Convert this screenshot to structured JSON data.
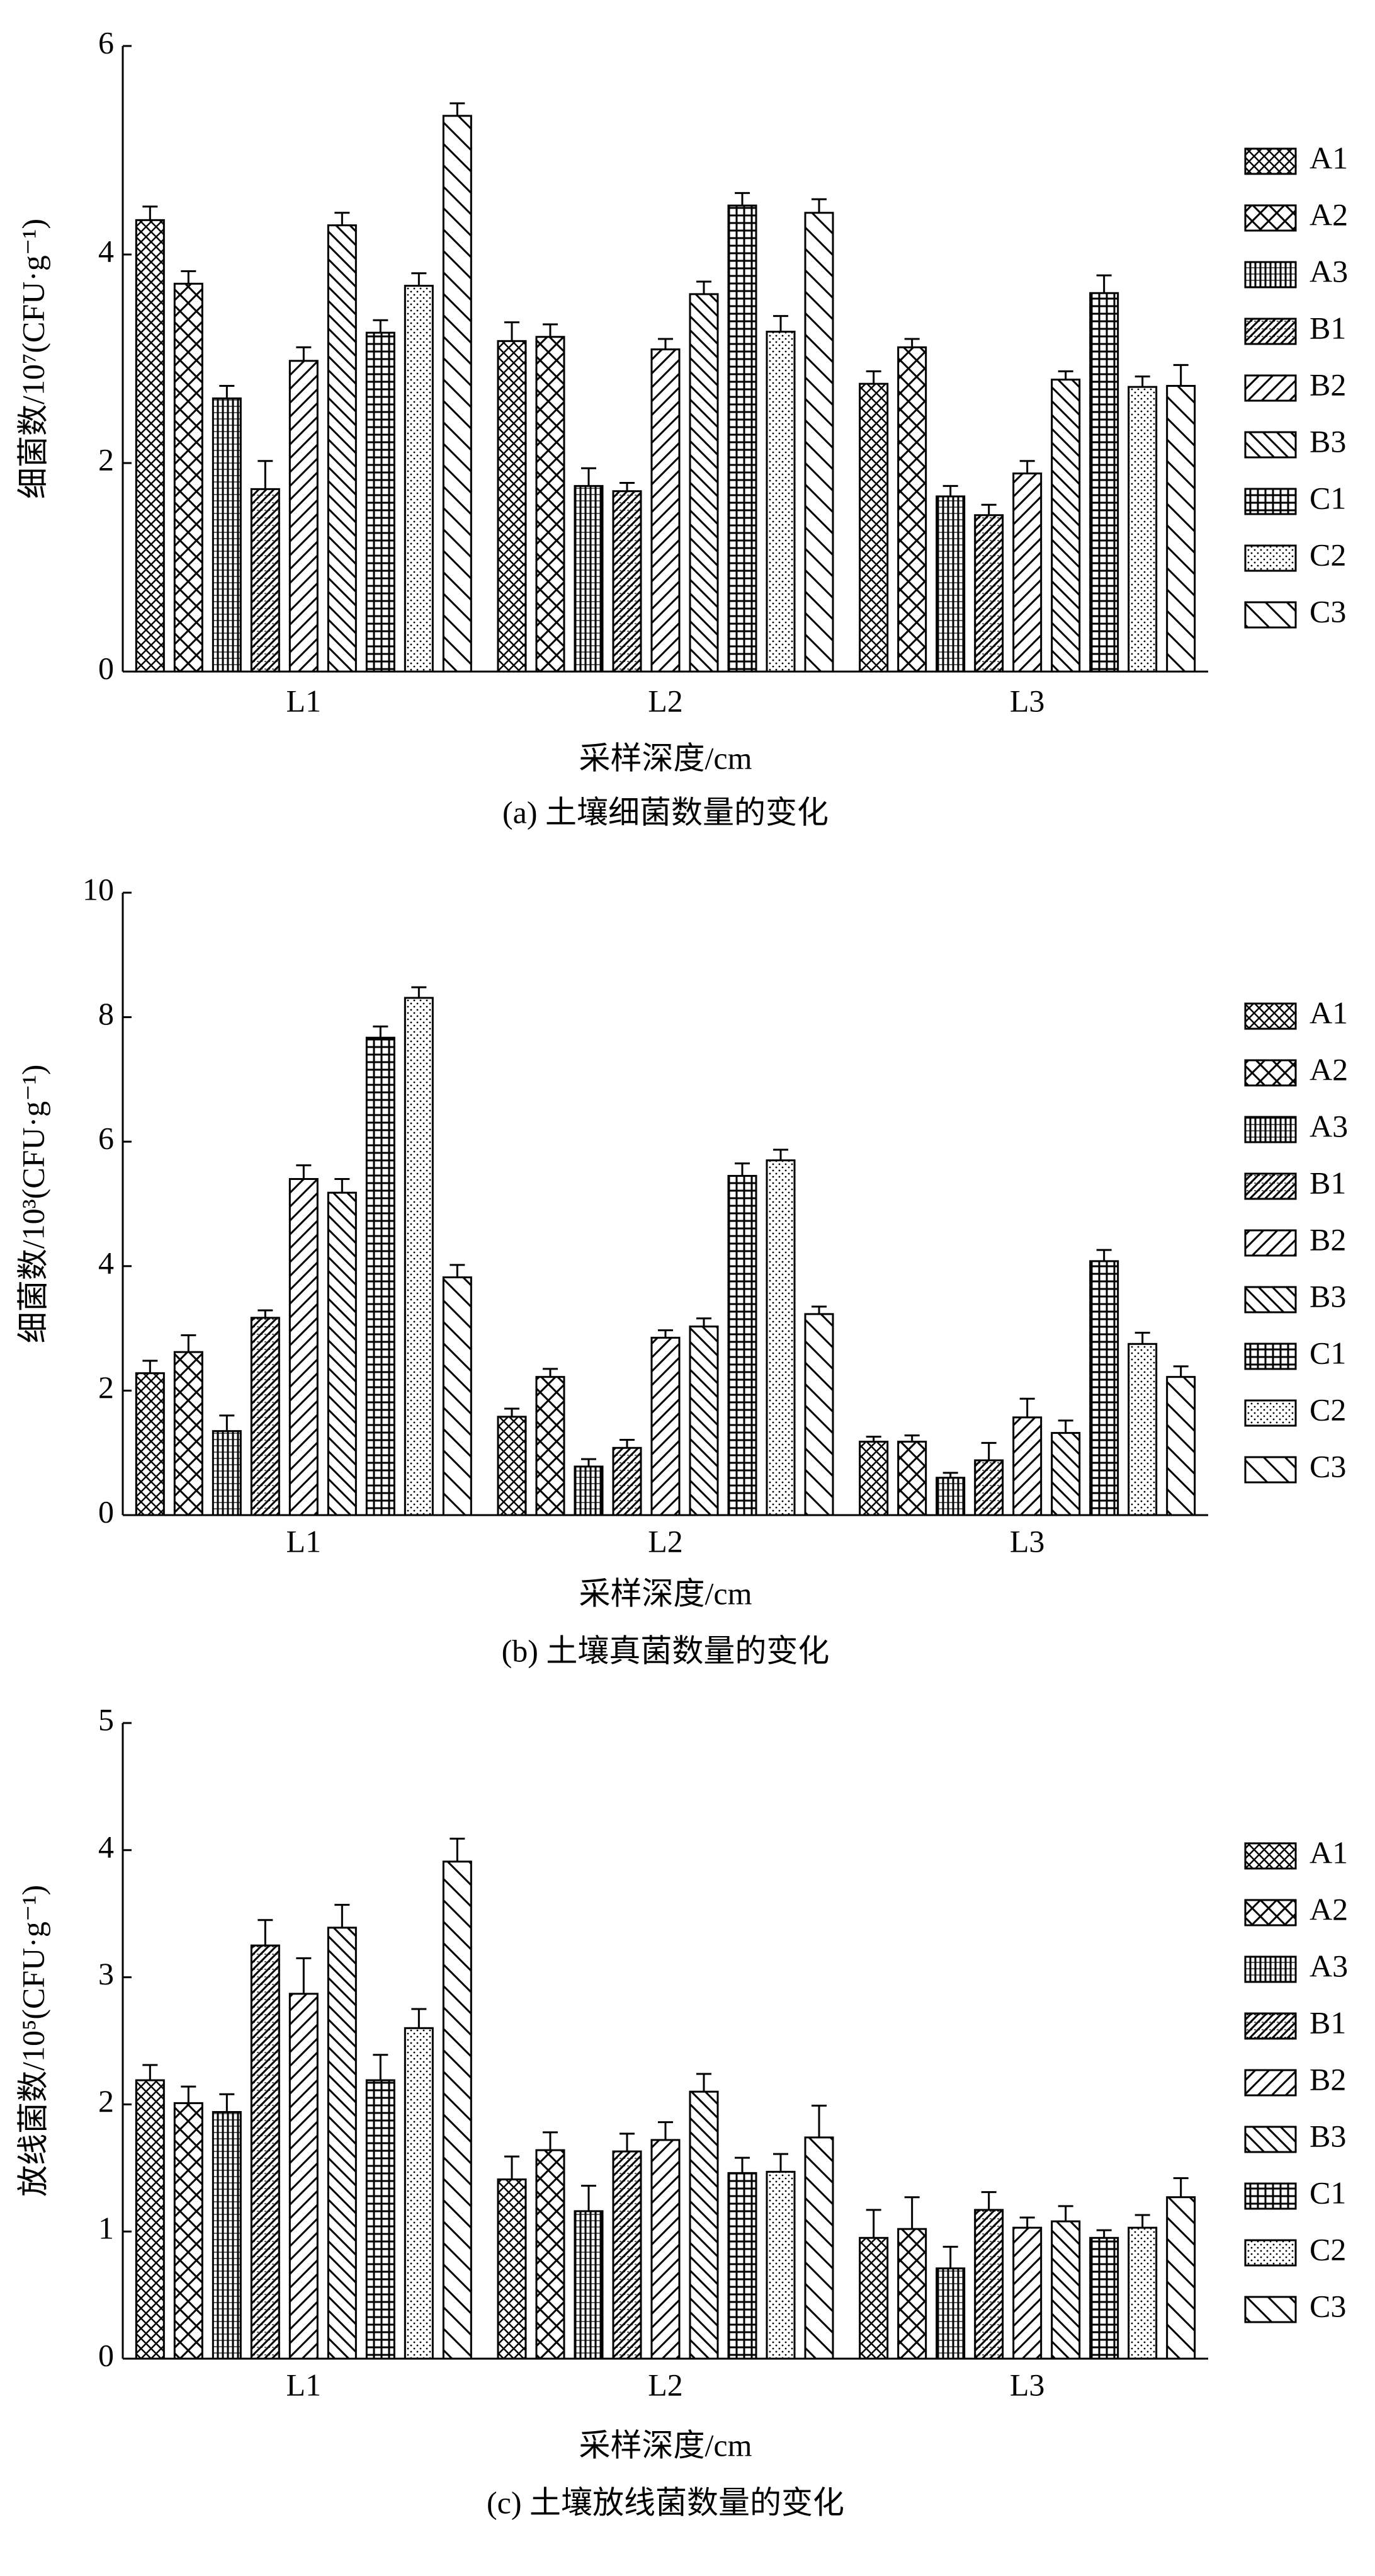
{
  "chart_data": [
    {
      "type": "bar",
      "caption": "(a) 土壤细菌数量的变化",
      "xlabel": "采样深度/cm",
      "ylabel": "细菌数/10⁷(CFU·g⁻¹)",
      "categories": [
        "L1",
        "L2",
        "L3"
      ],
      "ylim": [
        0,
        6
      ],
      "yticks": [
        0,
        2,
        4,
        6
      ],
      "series": [
        {
          "name": "A1",
          "color": "#000000",
          "values": [
            4.33,
            3.17,
            2.76
          ],
          "errors": [
            0.13,
            0.18,
            0.12
          ]
        },
        {
          "name": "A2",
          "color": "#000000",
          "values": [
            3.72,
            3.21,
            3.11
          ],
          "errors": [
            0.12,
            0.12,
            0.08
          ]
        },
        {
          "name": "A3",
          "color": "#000000",
          "values": [
            2.62,
            1.78,
            1.68
          ],
          "errors": [
            0.12,
            0.17,
            0.1
          ]
        },
        {
          "name": "B1",
          "color": "#000000",
          "values": [
            1.75,
            1.73,
            1.5
          ],
          "errors": [
            0.27,
            0.08,
            0.1
          ]
        },
        {
          "name": "B2",
          "color": "#000000",
          "values": [
            2.98,
            3.09,
            1.9
          ],
          "errors": [
            0.13,
            0.1,
            0.12
          ]
        },
        {
          "name": "B3",
          "color": "#000000",
          "values": [
            4.28,
            3.62,
            2.8
          ],
          "errors": [
            0.12,
            0.12,
            0.08
          ]
        },
        {
          "name": "C1",
          "color": "#000000",
          "values": [
            3.25,
            4.47,
            3.63
          ],
          "errors": [
            0.12,
            0.12,
            0.17
          ]
        },
        {
          "name": "C2",
          "color": "#000000",
          "values": [
            3.7,
            3.26,
            2.73
          ],
          "errors": [
            0.12,
            0.15,
            0.1
          ]
        },
        {
          "name": "C3",
          "color": "#000000",
          "values": [
            5.33,
            4.4,
            2.74
          ],
          "errors": [
            0.12,
            0.13,
            0.2
          ]
        }
      ]
    },
    {
      "type": "bar",
      "caption": "(b) 土壤真菌数量的变化",
      "xlabel": "采样深度/cm",
      "ylabel": "细菌数/10³(CFU·g⁻¹)",
      "categories": [
        "L1",
        "L2",
        "L3"
      ],
      "ylim": [
        0,
        10
      ],
      "yticks": [
        0,
        2,
        4,
        6,
        8,
        10
      ],
      "series": [
        {
          "name": "A1",
          "color": "#000000",
          "values": [
            2.28,
            1.58,
            1.18
          ],
          "errors": [
            0.2,
            0.13,
            0.08
          ]
        },
        {
          "name": "A2",
          "color": "#000000",
          "values": [
            2.62,
            2.22,
            1.18
          ],
          "errors": [
            0.27,
            0.13,
            0.1
          ]
        },
        {
          "name": "A3",
          "color": "#000000",
          "values": [
            1.35,
            0.78,
            0.6
          ],
          "errors": [
            0.25,
            0.12,
            0.08
          ]
        },
        {
          "name": "B1",
          "color": "#000000",
          "values": [
            3.17,
            1.08,
            0.88
          ],
          "errors": [
            0.12,
            0.13,
            0.28
          ]
        },
        {
          "name": "B2",
          "color": "#000000",
          "values": [
            5.4,
            2.85,
            1.57
          ],
          "errors": [
            0.22,
            0.12,
            0.3
          ]
        },
        {
          "name": "B3",
          "color": "#000000",
          "values": [
            5.18,
            3.03,
            1.32
          ],
          "errors": [
            0.22,
            0.13,
            0.2
          ]
        },
        {
          "name": "C1",
          "color": "#000000",
          "values": [
            7.67,
            5.45,
            4.08
          ],
          "errors": [
            0.18,
            0.2,
            0.18
          ]
        },
        {
          "name": "C2",
          "color": "#000000",
          "values": [
            8.31,
            5.7,
            2.75
          ],
          "errors": [
            0.17,
            0.17,
            0.18
          ]
        },
        {
          "name": "C3",
          "color": "#000000",
          "values": [
            3.82,
            3.23,
            2.22
          ],
          "errors": [
            0.2,
            0.12,
            0.17
          ]
        }
      ]
    },
    {
      "type": "bar",
      "caption": "(c) 土壤放线菌数量的变化",
      "xlabel": "采样深度/cm",
      "ylabel": "放线菌数/10⁵(CFU·g⁻¹)",
      "categories": [
        "L1",
        "L2",
        "L3"
      ],
      "ylim": [
        0,
        5
      ],
      "yticks": [
        0,
        1,
        2,
        3,
        4,
        5
      ],
      "series": [
        {
          "name": "A1",
          "color": "#000000",
          "values": [
            2.19,
            1.41,
            0.95
          ],
          "errors": [
            0.12,
            0.18,
            0.22
          ]
        },
        {
          "name": "A2",
          "color": "#000000",
          "values": [
            2.01,
            1.64,
            1.02
          ],
          "errors": [
            0.13,
            0.14,
            0.25
          ]
        },
        {
          "name": "A3",
          "color": "#000000",
          "values": [
            1.94,
            1.16,
            0.71
          ],
          "errors": [
            0.14,
            0.2,
            0.17
          ]
        },
        {
          "name": "B1",
          "color": "#000000",
          "values": [
            3.25,
            1.63,
            1.17
          ],
          "errors": [
            0.2,
            0.14,
            0.14
          ]
        },
        {
          "name": "B2",
          "color": "#000000",
          "values": [
            2.87,
            1.72,
            1.03
          ],
          "errors": [
            0.28,
            0.14,
            0.08
          ]
        },
        {
          "name": "B3",
          "color": "#000000",
          "values": [
            3.39,
            2.1,
            1.08
          ],
          "errors": [
            0.18,
            0.14,
            0.12
          ]
        },
        {
          "name": "C1",
          "color": "#000000",
          "values": [
            2.19,
            1.46,
            0.95
          ],
          "errors": [
            0.2,
            0.12,
            0.06
          ]
        },
        {
          "name": "C2",
          "color": "#000000",
          "values": [
            2.6,
            1.47,
            1.03
          ],
          "errors": [
            0.15,
            0.14,
            0.1
          ]
        },
        {
          "name": "C3",
          "color": "#000000",
          "values": [
            3.91,
            1.74,
            1.27
          ],
          "errors": [
            0.18,
            0.25,
            0.15
          ]
        }
      ]
    }
  ]
}
